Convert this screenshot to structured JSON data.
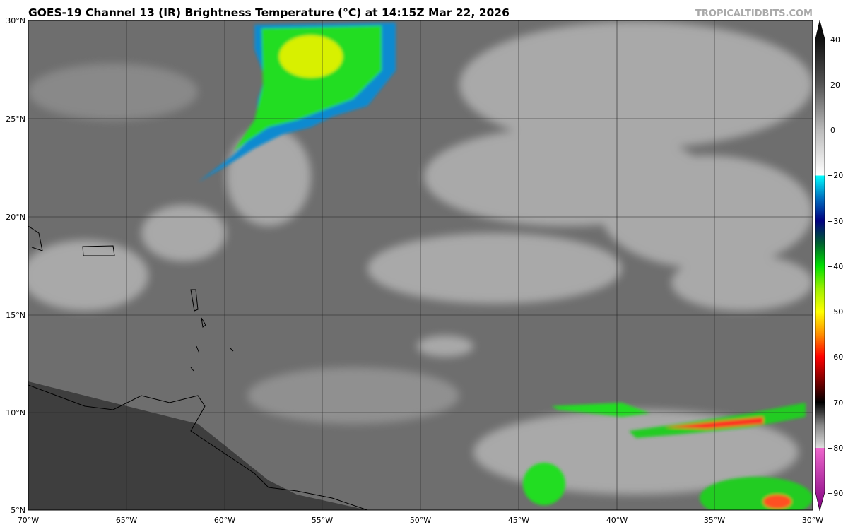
{
  "title": "GOES-19 Channel 13 (IR) Brightness Temperature (°C) at 14:15Z Mar 22, 2026",
  "credit": "TROPICALTIDBITS.COM",
  "map": {
    "lat_labels": [
      "30°N",
      "25°N",
      "20°N",
      "15°N",
      "10°N",
      "5°N"
    ],
    "lon_labels": [
      "70°W",
      "65°W",
      "60°W",
      "55°W",
      "50°W",
      "45°W",
      "40°W",
      "35°W",
      "30°W"
    ],
    "extent": {
      "lon": [
        -70,
        -30
      ],
      "lat": [
        5,
        30
      ]
    },
    "grid": true
  },
  "colorbar": {
    "ticks": [
      "40",
      "20",
      "0",
      "−20",
      "−30",
      "−40",
      "−50",
      "−60",
      "−70",
      "−80",
      "−90"
    ],
    "range": [
      -90,
      40
    ],
    "colors": {
      "warm": "#111111",
      "cold_cloud": "#00ffff",
      "deep": "#000080",
      "green": "#00ee00",
      "yellow": "#ffff00",
      "red": "#ff0000",
      "pink": "#ee66cc",
      "purple": "#800080"
    }
  }
}
